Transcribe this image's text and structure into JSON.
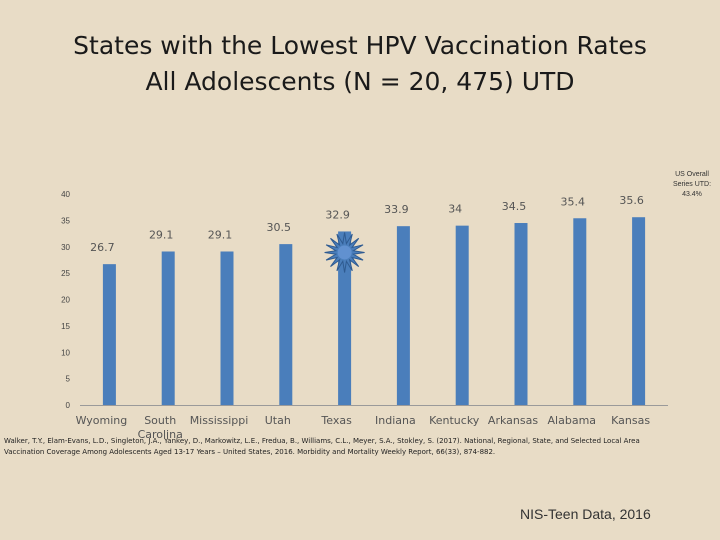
{
  "title_lines": [
    "States with the Lowest HPV Vaccination Rates",
    "All Adolescents (N = 20, 475) UTD"
  ],
  "callout": [
    "US Overall",
    "Series UTD:",
    "43.4%"
  ],
  "citation": [
    "Walker, T.Y., Elam-Evans, L.D., Singleton, J.A., Yankey, D., Markowitz, L.E., Fredua, B., Williams, C.L., Meyer, S.A., Stokley, S. (2017). National, Regional, State, and Selected Local Area",
    "Vaccination Coverage Among Adolescents Aged 13-17 Years – United States, 2016. Morbidity and Mortality Weekly Report, 66(33), 874-882."
  ],
  "source": "NIS-Teen Data, 2016",
  "colors": {
    "bar": "#4a7ebb",
    "axis": "#9a9a9a",
    "highlight": "#4a7ebb"
  },
  "highlight_category": "Texas",
  "chart_data": {
    "type": "bar",
    "categories": [
      [
        "Wyoming"
      ],
      [
        "South",
        "Carolina"
      ],
      [
        "Mississippi"
      ],
      [
        "Utah"
      ],
      [
        "Texas"
      ],
      [
        "Indiana"
      ],
      [
        "Kentucky"
      ],
      [
        "Arkansas"
      ],
      [
        "Alabama"
      ],
      [
        "Kansas"
      ]
    ],
    "values": [
      26.7,
      29.1,
      29.1,
      30.5,
      32.9,
      33.9,
      34,
      34.5,
      35.4,
      35.6
    ],
    "data_labels": [
      "26.7",
      "29.1",
      "29.1",
      "30.5",
      "32.9",
      "33.9",
      "34",
      "34.5",
      "35.4",
      "35.6"
    ],
    "y_ticks": [
      0,
      5,
      10,
      15,
      20,
      25,
      30,
      35,
      40
    ],
    "ylim": [
      0,
      40
    ],
    "grid": false,
    "legend": "none"
  }
}
